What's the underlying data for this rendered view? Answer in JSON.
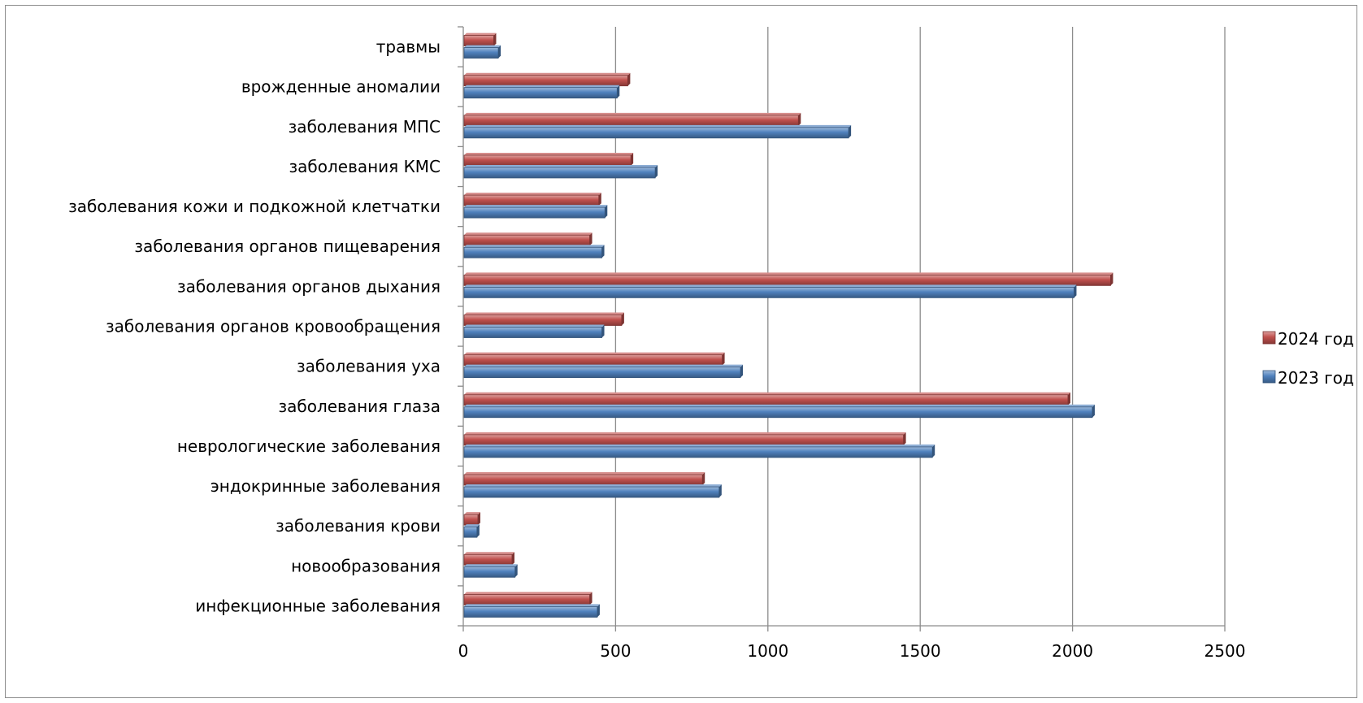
{
  "chart_data": {
    "type": "bar",
    "orientation": "horizontal",
    "categories": [
      "инфекционные заболевания",
      "новообразования",
      "заболевания крови",
      "эндокринные заболевания",
      "неврологические заболевания",
      "заболевания глаза",
      "заболевания уха",
      "заболевания органов кровообращения",
      "заболевания органов дыхания",
      "заболевания органов пищеварения",
      "заболевания кожи и подкожной клетчатки ",
      "заболевания КМС",
      "заболевания МПС",
      "врожденные аномалии",
      "травмы"
    ],
    "series": [
      {
        "name": "2023 год",
        "color": "#4f81bd",
        "values": [
          440,
          170,
          45,
          840,
          1540,
          2065,
          910,
          455,
          2005,
          455,
          465,
          630,
          1265,
          505,
          115
        ]
      },
      {
        "name": "2024 год",
        "color": "#c0504d",
        "values": [
          415,
          160,
          48,
          785,
          1445,
          1985,
          850,
          520,
          2125,
          415,
          445,
          550,
          1100,
          540,
          100
        ]
      }
    ],
    "xlim": [
      0,
      2500
    ],
    "xticks": [
      "0",
      "500",
      "1000",
      "1500",
      "2000",
      "2500"
    ],
    "gridlines": "vertical",
    "legend": "right"
  }
}
